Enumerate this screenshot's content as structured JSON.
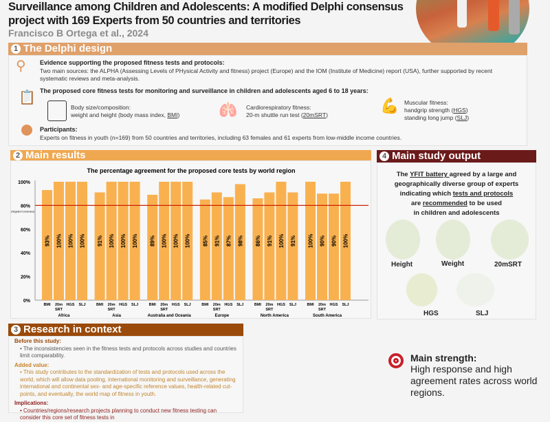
{
  "header": {
    "title_line1": "Surveillance among Children and Adolescents: A modified Delphi consensus",
    "title_line2": "project with 169 Experts from 50 countries and territories",
    "author": "Francisco B Ortega et al., 2024"
  },
  "s1": {
    "num": "1",
    "title": "The Delphi design",
    "evidence_title": "Evidence supporting the proposed fitness tests and protocols:",
    "evidence_text": "Two main sources: the ALPHA (Assessing Levels of PHysical Activity and fitness) project (Europe) and the IOM (Institute of Medicine) report (USA), further supported by recent systematic reviews and meta-analysis.",
    "tests_title": "The proposed core fitness tests for monitoring and surveillance in children and adolescents aged 6 to 18 years:",
    "body_l1": "Body size/composition:",
    "body_l2": "weight and height (body mass index, ",
    "body_abbr": "BMI",
    "close": ")",
    "cardio_l1": "Cardiorespiratory fitness:",
    "cardio_l2": "20-m shuttle run test (",
    "cardio_abbr": "20mSRT",
    "musc_l1": "Muscular fitness:",
    "musc_l2": "handgrip strength (",
    "musc_abbr2": "HGS",
    "musc_l3": "standing long jump (",
    "musc_abbr3": "SLJ",
    "part_title": "Participants:",
    "part_text": "Experts on fitness in youth (n=169) from 50 countries and territories, including 63 females and 61 experts from low-middle income countries."
  },
  "s2": {
    "num": "2",
    "title": "Main results"
  },
  "s3": {
    "num": "3",
    "title": "Research in context",
    "before_title": "Before this study:",
    "before_text": "The inconsistencies seen in the fitness tests and protocols across studies and countries limit comparability.",
    "added_title": "Added value:",
    "added_text": "This study contributes to the standardization of tests and protocols used across the world, which will allow data pooling, international monitoring and surveillance, generating international and continental sex- and age-specific reference values, health-related cut-points, and eventually, the world map of fitness in youth.",
    "impl_title": "Implications:",
    "impl_text": "Countries/regions/research projects planning to conduct new fitness testing can consider this core set of fitness tests in"
  },
  "s4": {
    "num": "4",
    "title": "Main study output",
    "p1a": "The ",
    "p1u": "YFIT battery ",
    "p1b": "agreed by a large and",
    "p2": "geographically diverse group of experts",
    "p3a": "indicating which ",
    "p3u": "tests and protocols",
    "p4a": "are ",
    "p4u": "recommended",
    "p4b": " to be used",
    "p5": "in children and adolescents",
    "items": [
      "Height",
      "Weight",
      "20mSRT",
      "HGS",
      "SLJ"
    ]
  },
  "strength": {
    "title": "Main strength:",
    "text": "High response and high agreement rates across world regions."
  },
  "colors": {
    "bar": "#f9b150",
    "threshold": "#cc2200",
    "s1": "#e0a06a",
    "s2": "#f0a850",
    "s3": "#9a4a0a",
    "s4": "#6b1a1a"
  },
  "chart_data": {
    "type": "bar",
    "title": "The percentage agreement for the proposed core tests by world region",
    "ylim": [
      0,
      100
    ],
    "yticks": [
      "0%",
      "20%",
      "40%",
      "60%",
      "80%",
      "100%"
    ],
    "threshold": 80,
    "threshold_label": "(Targeted Consensus)",
    "categories": [
      "BMI",
      "20m SRT",
      "HGS",
      "SLJ"
    ],
    "groups": [
      {
        "name": "Africa",
        "values": [
          93,
          100,
          100,
          100
        ]
      },
      {
        "name": "Asia",
        "values": [
          91,
          100,
          100,
          100
        ]
      },
      {
        "name": "Australia and Oceania",
        "values": [
          89,
          100,
          100,
          100
        ]
      },
      {
        "name": "Europe",
        "values": [
          85,
          91,
          87,
          98
        ]
      },
      {
        "name": "North America",
        "values": [
          86,
          91,
          100,
          91
        ]
      },
      {
        "name": "South America",
        "values": [
          100,
          90,
          90,
          100
        ]
      }
    ]
  }
}
